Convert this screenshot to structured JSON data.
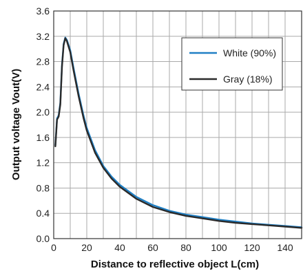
{
  "chart_data": {
    "type": "line",
    "title": "",
    "xlabel": "Distance to reflective object  L(cm)",
    "ylabel": "Output voltage  Vout(V)",
    "xlim": [
      0,
      150
    ],
    "ylim": [
      0,
      3.6
    ],
    "xticks": [
      0,
      20,
      40,
      60,
      80,
      100,
      120,
      140
    ],
    "yticks": [
      "0.0",
      "0.4",
      "0.8",
      "1.2",
      "1.6",
      "2.0",
      "2.4",
      "2.8",
      "3.2",
      "3.6"
    ],
    "grid": true,
    "legend": "top-right",
    "series": [
      {
        "name": "White (90%)",
        "color": "#1f7fc4",
        "x": [
          1,
          2,
          3,
          4,
          5,
          6,
          7,
          8,
          10,
          12,
          15,
          18,
          20,
          25,
          30,
          35,
          40,
          50,
          60,
          70,
          80,
          90,
          100,
          110,
          120,
          130,
          140,
          150
        ],
        "y": [
          1.48,
          1.9,
          1.95,
          2.15,
          2.75,
          3.08,
          3.18,
          3.14,
          2.98,
          2.7,
          2.3,
          1.95,
          1.75,
          1.4,
          1.15,
          0.98,
          0.85,
          0.66,
          0.53,
          0.44,
          0.38,
          0.34,
          0.3,
          0.27,
          0.24,
          0.22,
          0.2,
          0.18
        ]
      },
      {
        "name": "Gray (18%)",
        "color": "#2a2a2a",
        "x": [
          1,
          2,
          3,
          4,
          5,
          6,
          7,
          8,
          10,
          12,
          15,
          18,
          20,
          25,
          30,
          35,
          40,
          50,
          60,
          70,
          80,
          90,
          100,
          110,
          120,
          130,
          140,
          150
        ],
        "y": [
          1.46,
          1.88,
          1.93,
          2.12,
          2.72,
          3.06,
          3.17,
          3.12,
          2.95,
          2.66,
          2.26,
          1.91,
          1.71,
          1.36,
          1.12,
          0.95,
          0.82,
          0.63,
          0.5,
          0.42,
          0.36,
          0.32,
          0.28,
          0.25,
          0.23,
          0.21,
          0.19,
          0.17
        ]
      }
    ]
  },
  "legend": {
    "white_label": "White (90%)",
    "gray_label": "Gray (18%)"
  }
}
